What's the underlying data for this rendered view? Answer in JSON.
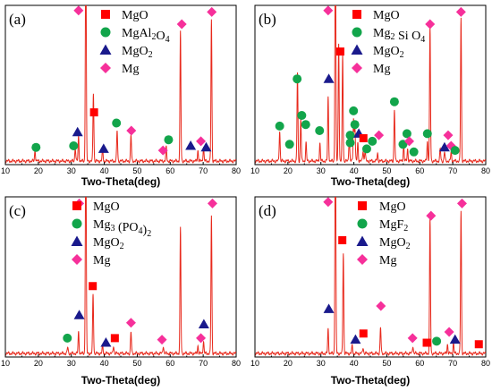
{
  "colors": {
    "trace": "#e8291c",
    "square": "#ff0000",
    "circle": "#12a54b",
    "triangle": "#1a1a8c",
    "diamond": "#f6309a"
  },
  "chart_data": [
    {
      "type": "line",
      "panel_label": "(a)",
      "xlabel": "Two-Theta(deg)",
      "xlim": [
        10,
        80
      ],
      "xticks": [
        "10",
        "20",
        "30",
        "40",
        "50",
        "60",
        "70",
        "80"
      ],
      "legend": [
        {
          "shape": "square",
          "parts": [
            {
              "t": "MgO"
            }
          ]
        },
        {
          "shape": "circle",
          "parts": [
            {
              "t": "MgAl"
            },
            {
              "t": "2",
              "sub": true
            },
            {
              "t": "O"
            },
            {
              "t": "4",
              "sub": true
            }
          ]
        },
        {
          "shape": "triangle",
          "parts": [
            {
              "t": "MgO"
            },
            {
              "t": "2",
              "sub": true
            }
          ]
        },
        {
          "shape": "diamond",
          "parts": [
            {
              "t": "Mg"
            }
          ]
        }
      ],
      "peaks": [
        [
          19,
          0.07
        ],
        [
          31.2,
          0.09
        ],
        [
          32.2,
          0.16
        ],
        [
          34.4,
          1.5
        ],
        [
          36.7,
          0.45
        ],
        [
          39.5,
          0.08
        ],
        [
          43.9,
          0.2
        ],
        [
          48.1,
          0.17
        ],
        [
          58.8,
          0.09
        ],
        [
          63.1,
          0.85
        ],
        [
          68.4,
          0.07
        ],
        [
          70.1,
          0.09
        ],
        [
          72.5,
          0.93
        ]
      ],
      "markers": [
        {
          "shape": "diamond",
          "x": 32.2,
          "y": 0.99
        },
        {
          "shape": "square",
          "x": 36.9,
          "y": 0.32
        },
        {
          "shape": "circle",
          "x": 19.3,
          "y": 0.09
        },
        {
          "shape": "circle",
          "x": 30.7,
          "y": 0.1
        },
        {
          "shape": "triangle",
          "x": 31.9,
          "y": 0.19
        },
        {
          "shape": "triangle",
          "x": 39.8,
          "y": 0.08
        },
        {
          "shape": "circle",
          "x": 43.7,
          "y": 0.25
        },
        {
          "shape": "diamond",
          "x": 48.2,
          "y": 0.2
        },
        {
          "shape": "circle",
          "x": 59.5,
          "y": 0.14
        },
        {
          "shape": "diamond",
          "x": 57.8,
          "y": 0.07
        },
        {
          "shape": "diamond",
          "x": 63.5,
          "y": 0.9
        },
        {
          "shape": "triangle",
          "x": 66.2,
          "y": 0.1
        },
        {
          "shape": "diamond",
          "x": 69.3,
          "y": 0.13
        },
        {
          "shape": "triangle",
          "x": 70.9,
          "y": 0.09
        },
        {
          "shape": "diamond",
          "x": 72.6,
          "y": 0.98
        }
      ]
    },
    {
      "type": "line",
      "panel_label": "(b)",
      "xlabel": "Two-Theta(deg)",
      "xlim": [
        10,
        80
      ],
      "xticks": [
        "10",
        "20",
        "30",
        "40",
        "50",
        "60",
        "70",
        "80"
      ],
      "legend": [
        {
          "shape": "square",
          "parts": [
            {
              "t": "MgO"
            }
          ]
        },
        {
          "shape": "circle",
          "parts": [
            {
              "t": "Mg"
            },
            {
              "t": "2",
              "sub": true
            },
            {
              "t": " Si O"
            },
            {
              "t": "4",
              "sub": true
            }
          ]
        },
        {
          "shape": "triangle",
          "parts": [
            {
              "t": "MgO"
            },
            {
              "t": "2",
              "sub": true
            }
          ]
        },
        {
          "shape": "diamond",
          "parts": [
            {
              "t": "Mg"
            }
          ]
        }
      ],
      "peaks": [
        [
          17.5,
          0.2
        ],
        [
          22.9,
          0.58
        ],
        [
          23.9,
          0.28
        ],
        [
          25.5,
          0.12
        ],
        [
          29.7,
          0.12
        ],
        [
          32.2,
          0.42
        ],
        [
          34.4,
          1.5
        ],
        [
          35.4,
          0.78
        ],
        [
          36.6,
          0.7
        ],
        [
          38.6,
          0.16
        ],
        [
          39.9,
          0.28
        ],
        [
          40.3,
          0.25
        ],
        [
          41.2,
          0.12
        ],
        [
          42.8,
          0.07
        ],
        [
          43.4,
          0.07
        ],
        [
          47.2,
          0.05
        ],
        [
          52.3,
          0.34
        ],
        [
          55.1,
          0.11
        ],
        [
          56.3,
          0.08
        ],
        [
          62.3,
          0.13
        ],
        [
          63.1,
          0.88
        ],
        [
          66.2,
          0.08
        ],
        [
          67.5,
          0.06
        ],
        [
          69.5,
          0.06
        ],
        [
          72.5,
          0.94
        ]
      ],
      "markers": [
        {
          "shape": "diamond",
          "x": 32.2,
          "y": 0.99
        },
        {
          "shape": "square",
          "x": 35.9,
          "y": 0.72
        },
        {
          "shape": "circle",
          "x": 17.5,
          "y": 0.23
        },
        {
          "shape": "circle",
          "x": 22.8,
          "y": 0.54
        },
        {
          "shape": "circle",
          "x": 20.5,
          "y": 0.11
        },
        {
          "shape": "circle",
          "x": 24.2,
          "y": 0.3
        },
        {
          "shape": "circle",
          "x": 25.4,
          "y": 0.24
        },
        {
          "shape": "circle",
          "x": 29.6,
          "y": 0.2
        },
        {
          "shape": "triangle",
          "x": 32.4,
          "y": 0.54
        },
        {
          "shape": "circle",
          "x": 38.9,
          "y": 0.12
        },
        {
          "shape": "circle",
          "x": 39.9,
          "y": 0.33
        },
        {
          "shape": "circle",
          "x": 40.3,
          "y": 0.24
        },
        {
          "shape": "circle",
          "x": 38.9,
          "y": 0.17
        },
        {
          "shape": "triangle",
          "x": 41.5,
          "y": 0.18
        },
        {
          "shape": "square",
          "x": 42.9,
          "y": 0.15
        },
        {
          "shape": "circle",
          "x": 43.9,
          "y": 0.08
        },
        {
          "shape": "circle",
          "x": 45.6,
          "y": 0.13
        },
        {
          "shape": "diamond",
          "x": 47.6,
          "y": 0.17
        },
        {
          "shape": "circle",
          "x": 52.3,
          "y": 0.39
        },
        {
          "shape": "circle",
          "x": 54.9,
          "y": 0.11
        },
        {
          "shape": "circle",
          "x": 56.1,
          "y": 0.18
        },
        {
          "shape": "diamond",
          "x": 56.8,
          "y": 0.13
        },
        {
          "shape": "circle",
          "x": 58.2,
          "y": 0.06
        },
        {
          "shape": "circle",
          "x": 62.3,
          "y": 0.18
        },
        {
          "shape": "diamond",
          "x": 63.1,
          "y": 0.9
        },
        {
          "shape": "triangle",
          "x": 67.5,
          "y": 0.09
        },
        {
          "shape": "diamond",
          "x": 68.6,
          "y": 0.17
        },
        {
          "shape": "diamond",
          "x": 69.5,
          "y": 0.1
        },
        {
          "shape": "circle",
          "x": 70.7,
          "y": 0.07
        },
        {
          "shape": "diamond",
          "x": 72.5,
          "y": 0.98
        }
      ]
    },
    {
      "type": "line",
      "panel_label": "(c)",
      "xlabel": "Two-Theta(deg)",
      "xlim": [
        10,
        80
      ],
      "xticks": [
        "10",
        "20",
        "30",
        "40",
        "50",
        "60",
        "70",
        "80"
      ],
      "legend": [
        {
          "shape": "square",
          "parts": [
            {
              "t": "MgO"
            }
          ]
        },
        {
          "shape": "circle",
          "parts": [
            {
              "t": "Mg"
            },
            {
              "t": "3",
              "sub": true
            },
            {
              "t": " (PO"
            },
            {
              "t": "4",
              "sub": true
            },
            {
              "t": ")"
            },
            {
              "t": "2",
              "sub": true
            }
          ]
        },
        {
          "shape": "triangle",
          "parts": [
            {
              "t": "MgO"
            },
            {
              "t": "2",
              "sub": true
            }
          ]
        },
        {
          "shape": "diamond",
          "parts": [
            {
              "t": "Mg"
            }
          ]
        }
      ],
      "peaks": [
        [
          28.9,
          0.04
        ],
        [
          32.2,
          0.14
        ],
        [
          34.4,
          1.5
        ],
        [
          36.6,
          0.39
        ],
        [
          39.5,
          0.05
        ],
        [
          42.8,
          0.05
        ],
        [
          48.1,
          0.14
        ],
        [
          57.9,
          0.05
        ],
        [
          63.1,
          0.82
        ],
        [
          68.4,
          0.05
        ],
        [
          70.1,
          0.08
        ],
        [
          72.5,
          0.9
        ]
      ],
      "markers": [
        {
          "shape": "diamond",
          "x": 32.4,
          "y": 0.98
        },
        {
          "shape": "square",
          "x": 36.5,
          "y": 0.44
        },
        {
          "shape": "circle",
          "x": 28.8,
          "y": 0.1
        },
        {
          "shape": "triangle",
          "x": 32.4,
          "y": 0.25
        },
        {
          "shape": "triangle",
          "x": 40.5,
          "y": 0.07
        },
        {
          "shape": "square",
          "x": 43.2,
          "y": 0.1
        },
        {
          "shape": "diamond",
          "x": 48.1,
          "y": 0.2
        },
        {
          "shape": "diamond",
          "x": 57.5,
          "y": 0.09
        },
        {
          "shape": "diamond",
          "x": 69.3,
          "y": 0.1
        },
        {
          "shape": "triangle",
          "x": 70.2,
          "y": 0.19
        },
        {
          "shape": "diamond",
          "x": 72.8,
          "y": 0.98
        }
      ]
    },
    {
      "type": "line",
      "panel_label": "(d)",
      "xlabel": "Two-Theta(deg)",
      "xlim": [
        10,
        80
      ],
      "xticks": [
        "10",
        "20",
        "30",
        "40",
        "50",
        "60",
        "70",
        "80"
      ],
      "legend": [
        {
          "shape": "square",
          "parts": [
            {
              "t": "MgO"
            }
          ]
        },
        {
          "shape": "circle",
          "parts": [
            {
              "t": "MgF"
            },
            {
              "t": "2",
              "sub": true
            }
          ]
        },
        {
          "shape": "triangle",
          "parts": [
            {
              "t": "MgO"
            },
            {
              "t": "2",
              "sub": true
            }
          ]
        },
        {
          "shape": "diamond",
          "parts": [
            {
              "t": "Mg"
            }
          ]
        }
      ],
      "peaks": [
        [
          32.2,
          0.16
        ],
        [
          34.4,
          1.5
        ],
        [
          36.8,
          0.66
        ],
        [
          39.5,
          0.05
        ],
        [
          42.8,
          0.04
        ],
        [
          48.1,
          0.17
        ],
        [
          57.9,
          0.05
        ],
        [
          63.1,
          0.88
        ],
        [
          68.4,
          0.06
        ],
        [
          70.2,
          0.07
        ],
        [
          72.5,
          0.93
        ]
      ],
      "markers": [
        {
          "shape": "diamond",
          "x": 32.2,
          "y": 0.99
        },
        {
          "shape": "square",
          "x": 36.5,
          "y": 0.74
        },
        {
          "shape": "triangle",
          "x": 32.4,
          "y": 0.29
        },
        {
          "shape": "triangle",
          "x": 40.5,
          "y": 0.09
        },
        {
          "shape": "square",
          "x": 42.9,
          "y": 0.13
        },
        {
          "shape": "diamond",
          "x": 48.2,
          "y": 0.31
        },
        {
          "shape": "diamond",
          "x": 57.8,
          "y": 0.1
        },
        {
          "shape": "square",
          "x": 62.1,
          "y": 0.07
        },
        {
          "shape": "diamond",
          "x": 63.4,
          "y": 0.9
        },
        {
          "shape": "circle",
          "x": 65.1,
          "y": 0.08
        },
        {
          "shape": "diamond",
          "x": 68.9,
          "y": 0.14
        },
        {
          "shape": "triangle",
          "x": 70.7,
          "y": 0.09
        },
        {
          "shape": "diamond",
          "x": 72.8,
          "y": 0.98
        },
        {
          "shape": "square",
          "x": 77.9,
          "y": 0.06
        }
      ]
    }
  ]
}
